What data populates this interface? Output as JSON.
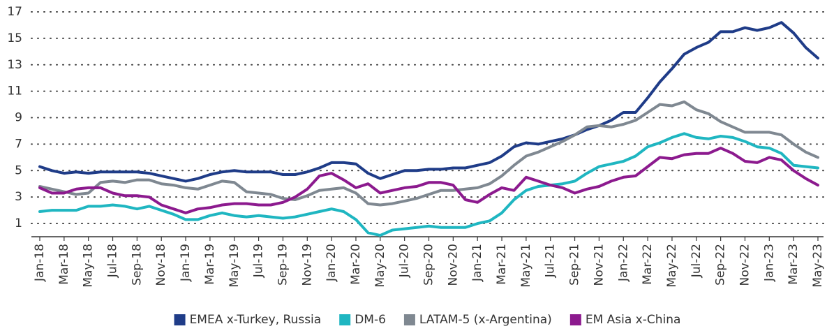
{
  "chart_data": {
    "type": "line",
    "categories": [
      "Jan-18",
      null,
      "Mar-18",
      null,
      "May-18",
      null,
      "Jul-18",
      null,
      "Sep-18",
      null,
      "Nov-18",
      null,
      "Jan-19",
      null,
      "Mar-19",
      null,
      "May-19",
      null,
      "Jul-19",
      null,
      "Sep-19",
      null,
      "Nov-19",
      null,
      "Jan-20",
      null,
      "Mar-20",
      null,
      "May-20",
      null,
      "Jul-20",
      null,
      "Sep-20",
      null,
      "Nov-20",
      null,
      "Jan-21",
      null,
      "Mar-21",
      null,
      "May-21",
      null,
      "Jul-21",
      null,
      "Sep-21",
      null,
      "Nov-21",
      null,
      "Jan-22",
      null,
      "Mar-22",
      null,
      "May-22",
      null,
      "Jul-22",
      null,
      "Sep-22",
      null,
      "Nov-22",
      null,
      "Jan-23",
      null,
      "Mar-23",
      null,
      "May-23"
    ],
    "series": [
      {
        "name": "EMEA x-Turkey, Russia",
        "color": "#1f3c88",
        "values": [
          5.3,
          5.0,
          4.8,
          4.9,
          4.8,
          4.9,
          4.9,
          4.9,
          4.9,
          4.8,
          4.6,
          4.4,
          4.2,
          4.4,
          4.7,
          4.9,
          5.0,
          4.9,
          4.9,
          4.9,
          4.7,
          4.7,
          4.9,
          5.2,
          5.6,
          5.6,
          5.5,
          4.8,
          4.4,
          4.7,
          5.0,
          5.0,
          5.1,
          5.1,
          5.2,
          5.2,
          5.4,
          5.6,
          6.1,
          6.8,
          7.1,
          7.0,
          7.2,
          7.4,
          7.7,
          8.1,
          8.4,
          8.8,
          9.4,
          9.4,
          10.5,
          11.7,
          12.7,
          13.8,
          14.3,
          14.7,
          15.5,
          15.5,
          15.8,
          15.6,
          15.8,
          16.2,
          15.4,
          14.3,
          13.5
        ]
      },
      {
        "name": "DM-6",
        "color": "#1fb6c1",
        "values": [
          1.9,
          2.0,
          2.0,
          2.0,
          2.3,
          2.3,
          2.4,
          2.3,
          2.1,
          2.3,
          2.0,
          1.7,
          1.3,
          1.3,
          1.6,
          1.8,
          1.6,
          1.5,
          1.6,
          1.5,
          1.4,
          1.5,
          1.7,
          1.9,
          2.1,
          1.9,
          1.3,
          0.3,
          0.1,
          0.5,
          0.6,
          0.7,
          0.8,
          0.7,
          0.7,
          0.7,
          1.0,
          1.2,
          1.8,
          2.8,
          3.5,
          3.8,
          3.9,
          4.0,
          4.2,
          4.8,
          5.3,
          5.5,
          5.7,
          6.1,
          6.8,
          7.1,
          7.5,
          7.8,
          7.5,
          7.4,
          7.6,
          7.5,
          7.2,
          6.8,
          6.7,
          6.3,
          5.4,
          5.3,
          5.2
        ]
      },
      {
        "name": "LATAM-5 (x-Argentina)",
        "color": "#7f8891",
        "values": [
          3.8,
          3.6,
          3.4,
          3.2,
          3.3,
          4.1,
          4.2,
          4.1,
          4.3,
          4.3,
          4.0,
          3.9,
          3.7,
          3.6,
          3.9,
          4.2,
          4.1,
          3.4,
          3.3,
          3.2,
          2.9,
          2.8,
          3.1,
          3.5,
          3.6,
          3.7,
          3.3,
          2.5,
          2.4,
          2.5,
          2.7,
          2.9,
          3.2,
          3.5,
          3.5,
          3.6,
          3.7,
          4.0,
          4.6,
          5.4,
          6.1,
          6.4,
          6.8,
          7.2,
          7.7,
          8.3,
          8.4,
          8.3,
          8.5,
          8.8,
          9.4,
          10.0,
          9.9,
          10.2,
          9.6,
          9.3,
          8.7,
          8.3,
          7.9,
          7.9,
          7.9,
          7.7,
          7.0,
          6.4,
          6.0
        ]
      },
      {
        "name": "EM Asia x-China",
        "color": "#8c1a8e",
        "values": [
          3.7,
          3.3,
          3.3,
          3.6,
          3.7,
          3.7,
          3.3,
          3.1,
          3.1,
          3.0,
          2.4,
          2.1,
          1.8,
          2.1,
          2.2,
          2.4,
          2.5,
          2.5,
          2.4,
          2.4,
          2.6,
          3.0,
          3.6,
          4.6,
          4.8,
          4.3,
          3.7,
          4.0,
          3.3,
          3.5,
          3.7,
          3.8,
          4.1,
          4.1,
          3.9,
          2.8,
          2.6,
          3.2,
          3.7,
          3.5,
          4.5,
          4.2,
          3.9,
          3.7,
          3.3,
          3.6,
          3.8,
          4.2,
          4.5,
          4.6,
          5.3,
          6.0,
          5.9,
          6.2,
          6.3,
          6.3,
          6.7,
          6.3,
          5.7,
          5.6,
          6.0,
          5.8,
          5.0,
          4.4,
          3.9
        ]
      }
    ],
    "ylim": [
      0,
      17
    ],
    "yticks": [
      1,
      3,
      5,
      7,
      9,
      11,
      13,
      15,
      17
    ],
    "grid": true
  }
}
